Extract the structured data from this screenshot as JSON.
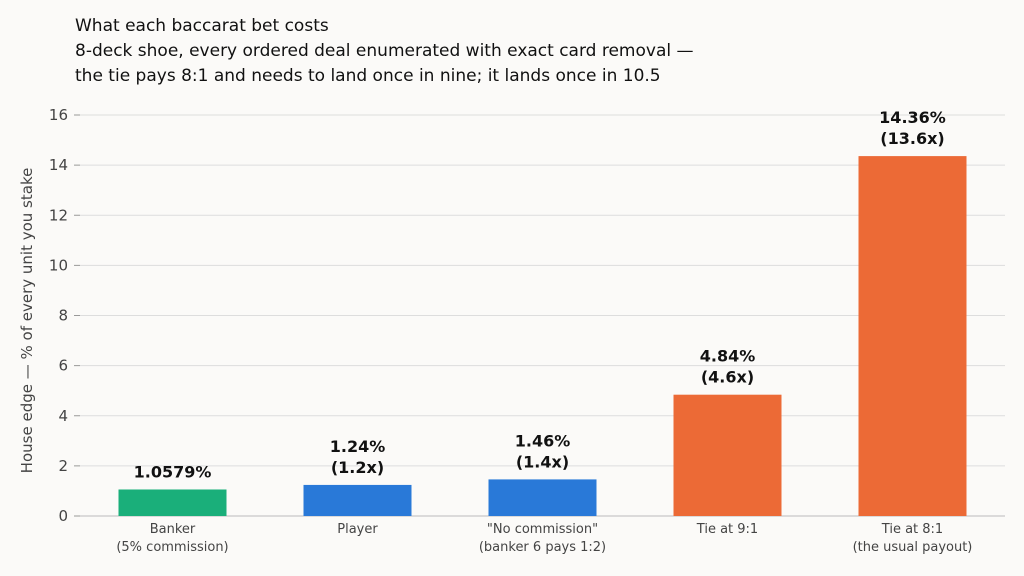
{
  "title": {
    "line1": "What each baccarat bet costs",
    "line2": "8-deck shoe, every ordered deal enumerated with exact card removal —",
    "line3": "the tie pays 8:1 and needs to land once in nine; it lands once in 10.5"
  },
  "chart_data": {
    "type": "bar",
    "categories": [
      [
        "Banker",
        "(5% commission)"
      ],
      [
        "Player"
      ],
      [
        "\"No commission\"",
        "(banker 6 pays 1:2)"
      ],
      [
        "Tie at 9:1"
      ],
      [
        "Tie at 8:1",
        "(the usual payout)"
      ]
    ],
    "values": [
      1.0579,
      1.24,
      1.46,
      4.84,
      14.36
    ],
    "data_labels": [
      [
        "1.0579%"
      ],
      [
        "1.24%",
        "(1.2x)"
      ],
      [
        "1.46%",
        "(1.4x)"
      ],
      [
        "4.84%",
        "(4.6x)"
      ],
      [
        "14.36%",
        "(13.6x)"
      ]
    ],
    "colors": [
      "#1aaf7a",
      "#2979d8",
      "#2979d8",
      "#ec6a36",
      "#ec6a36"
    ],
    "xlabel": "",
    "ylabel": "House edge — % of every unit you stake",
    "ylim": [
      0,
      16
    ],
    "yticks": [
      0,
      2,
      4,
      6,
      8,
      10,
      12,
      14,
      16
    ],
    "grid": true,
    "grid_color": "#dddddd",
    "axis_color": "#999999"
  }
}
